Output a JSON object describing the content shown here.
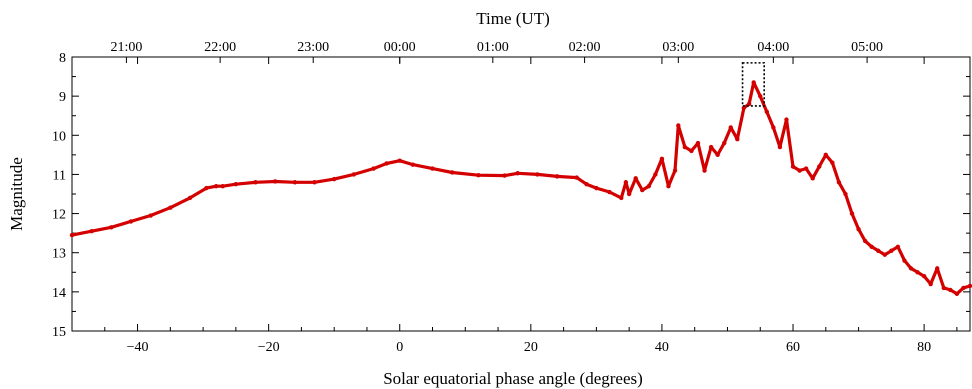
{
  "chart_data": {
    "type": "scatter",
    "title": "",
    "xlabel": "Solar equatorial phase angle (degrees)",
    "ylabel": "Magnitude",
    "top_xlabel": "Time (UT)",
    "xlim": [
      -50,
      87
    ],
    "ylim": [
      15,
      8
    ],
    "y_inverted": true,
    "x_ticks": [
      -40,
      -20,
      0,
      20,
      40,
      60,
      80
    ],
    "x_tick_labels": [
      "−40",
      "−20",
      "0",
      "20",
      "40",
      "60",
      "80"
    ],
    "y_ticks": [
      8,
      9,
      10,
      11,
      12,
      13,
      14,
      15
    ],
    "y_tick_labels": [
      "8",
      "9",
      "10",
      "11",
      "12",
      "13",
      "14",
      "15"
    ],
    "top_ticks_phase": [
      -41.7,
      -27.4,
      -13.2,
      0.0,
      14.2,
      28.2,
      42.5,
      57.0,
      71.3
    ],
    "top_tick_labels": [
      "21:00",
      "22:00",
      "23:00",
      "00:00",
      "01:00",
      "02:00",
      "03:00",
      "04:00",
      "05:00"
    ],
    "grid": false,
    "marker_color": "#d40000",
    "highlight_box": {
      "x": [
        52.3,
        55.6
      ],
      "y": [
        8.15,
        9.25
      ],
      "style": "dotted"
    },
    "series": [
      {
        "x": [
          -50,
          -47,
          -44,
          -41,
          -38,
          -35,
          -32,
          -29.5,
          -28,
          -27,
          -25,
          -22,
          -19,
          -16,
          -13,
          -10,
          -7,
          -4,
          -2,
          0,
          2,
          5,
          8,
          12,
          16,
          18,
          21,
          24,
          27,
          28.5,
          30,
          32,
          33.8,
          34.5,
          35,
          36,
          37,
          38,
          39,
          40,
          41,
          42,
          42.5,
          43.5,
          44.5,
          45.5,
          46.5,
          47.5,
          48.5,
          49.5,
          50.5,
          51.5,
          52.5,
          53.3,
          54,
          55,
          56,
          57,
          58,
          59,
          60,
          61,
          62,
          63,
          64,
          65,
          66,
          67,
          68,
          69,
          70,
          71,
          72,
          73,
          74,
          75,
          76,
          77,
          78,
          79,
          80,
          81,
          82,
          83,
          84,
          85,
          86,
          87
        ],
        "y": [
          12.55,
          12.45,
          12.35,
          12.2,
          12.05,
          11.85,
          11.6,
          11.35,
          11.3,
          11.3,
          11.25,
          11.2,
          11.18,
          11.2,
          11.2,
          11.12,
          11.0,
          10.85,
          10.72,
          10.65,
          10.75,
          10.85,
          10.95,
          11.02,
          11.03,
          10.97,
          11.0,
          11.05,
          11.08,
          11.25,
          11.35,
          11.45,
          11.6,
          11.2,
          11.5,
          11.1,
          11.4,
          11.3,
          11.0,
          10.6,
          11.3,
          10.9,
          9.75,
          10.3,
          10.4,
          10.2,
          10.9,
          10.3,
          10.5,
          10.2,
          9.8,
          10.1,
          9.3,
          9.2,
          8.65,
          9.0,
          9.4,
          9.8,
          10.3,
          9.6,
          10.8,
          10.9,
          10.85,
          11.1,
          10.8,
          10.5,
          10.7,
          11.2,
          11.5,
          12.0,
          12.4,
          12.7,
          12.85,
          12.95,
          13.05,
          12.95,
          12.85,
          13.2,
          13.4,
          13.5,
          13.6,
          13.8,
          13.4,
          13.9,
          13.95,
          14.05,
          13.9,
          13.85
        ]
      }
    ]
  }
}
